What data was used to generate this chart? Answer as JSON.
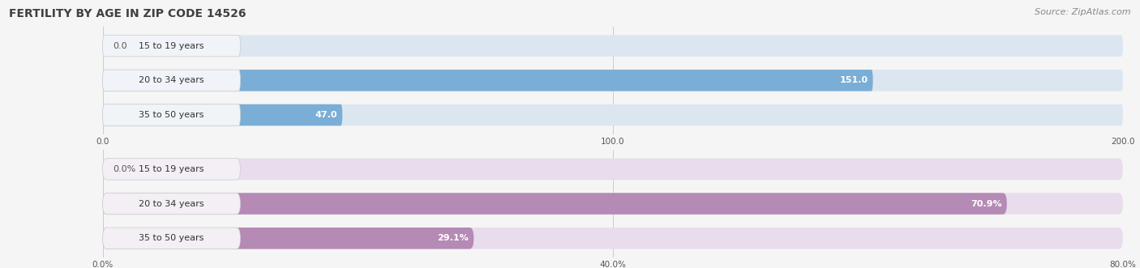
{
  "title": "FERTILITY BY AGE IN ZIP CODE 14526",
  "source": "Source: ZipAtlas.com",
  "top_chart": {
    "categories": [
      "15 to 19 years",
      "20 to 34 years",
      "35 to 50 years"
    ],
    "values": [
      0.0,
      151.0,
      47.0
    ],
    "xlim": [
      0,
      200
    ],
    "xticks": [
      0.0,
      100.0,
      200.0
    ],
    "xtick_labels": [
      "0.0",
      "100.0",
      "200.0"
    ],
    "bar_color": "#7aaed6",
    "bar_bg_color": "#dce6f0",
    "label_bg_color": "#f0f4f8",
    "label_inside_color": "#ffffff",
    "label_outside_color": "#555555"
  },
  "bottom_chart": {
    "categories": [
      "15 to 19 years",
      "20 to 34 years",
      "35 to 50 years"
    ],
    "values": [
      0.0,
      70.9,
      29.1
    ],
    "xlim": [
      0,
      80
    ],
    "xticks": [
      0.0,
      40.0,
      80.0
    ],
    "xtick_labels": [
      "0.0%",
      "40.0%",
      "80.0%"
    ],
    "bar_color": "#b58ab5",
    "bar_bg_color": "#e8dced",
    "label_bg_color": "#f3eff5",
    "label_inside_color": "#ffffff",
    "label_outside_color": "#555555"
  },
  "title_color": "#404040",
  "title_fontsize": 10,
  "source_color": "#888888",
  "source_fontsize": 8,
  "category_fontsize": 8,
  "value_fontsize": 8,
  "bg_color": "#f5f5f5"
}
